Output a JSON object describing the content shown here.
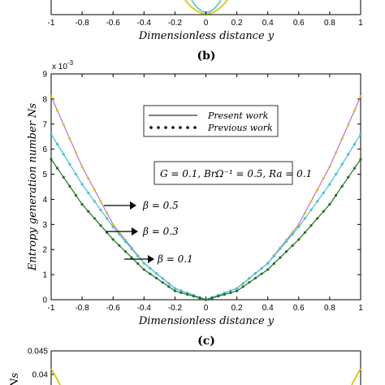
{
  "chart_data": [
    {
      "panel": "b",
      "type": "line",
      "xlabel": "Dimensionless distance y",
      "xlim": [
        -1,
        1
      ],
      "xticks": [
        -1,
        -0.8,
        -0.6,
        -0.4,
        -0.2,
        0,
        0.2,
        0.4,
        0.6,
        0.8,
        1
      ],
      "panel_label": "(b)"
    },
    {
      "panel": "c",
      "type": "line",
      "xlabel": "Dimensionless distance y",
      "ylabel": "Entropy generation number Ns",
      "y_scale_label": "x 10",
      "y_scale_exp": "-3",
      "xlim": [
        -1,
        1
      ],
      "ylim": [
        0,
        9
      ],
      "xticks": [
        -1,
        -0.8,
        -0.6,
        -0.4,
        -0.2,
        0,
        0.2,
        0.4,
        0.6,
        0.8,
        1
      ],
      "yticks": [
        0,
        1,
        2,
        3,
        4,
        5,
        6,
        7,
        8,
        9
      ],
      "panel_label": "(c)",
      "legend": {
        "present": "Present work",
        "previous": "Previous work"
      },
      "parameter_box": "G = 0.1, BrΩ⁻¹ = 0.5, Ra = 0.1",
      "annotations": [
        "β = 0.5",
        "β = 0.3",
        "β = 0.1"
      ],
      "x": [
        -1,
        -0.8,
        -0.6,
        -0.4,
        -0.2,
        0,
        0.2,
        0.4,
        0.6,
        0.8,
        1
      ],
      "series": [
        {
          "color": "#c070c0",
          "marker_color": "#d8c800",
          "values": [
            8.1,
            5.3,
            3.0,
            1.45,
            0.45,
            0.0,
            0.45,
            1.45,
            3.0,
            5.3,
            8.1
          ]
        },
        {
          "color": "#40c0d8",
          "marker_color": "#40c0d8",
          "values": [
            6.6,
            4.6,
            2.9,
            1.45,
            0.45,
            0.0,
            0.45,
            1.45,
            2.9,
            4.6,
            6.6
          ]
        },
        {
          "color": "#207020",
          "marker_color": "#207020",
          "values": [
            5.6,
            3.8,
            2.4,
            1.2,
            0.35,
            0.0,
            0.35,
            1.2,
            2.4,
            3.8,
            5.6
          ]
        }
      ]
    },
    {
      "panel": "d-partial",
      "type": "line",
      "ylabel": "Ns",
      "yticks": [
        0.04,
        0.045
      ],
      "ylim": [
        0,
        0.045
      ]
    }
  ]
}
